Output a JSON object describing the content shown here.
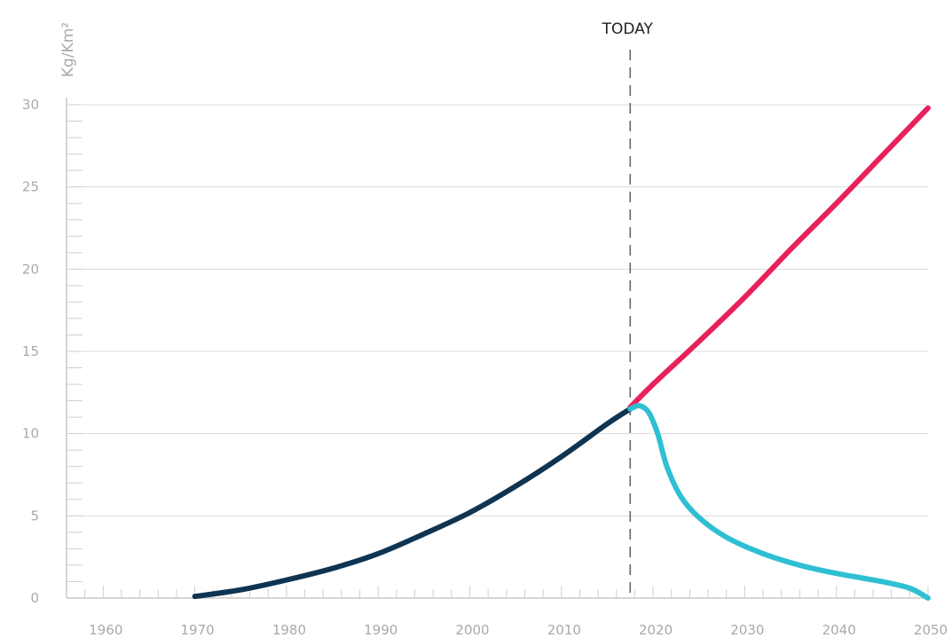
{
  "chart_data": {
    "type": "line",
    "title": "",
    "xlabel": "",
    "ylabel": "Kg/Km²",
    "xlim": [
      1956,
      2050
    ],
    "ylim": [
      0,
      30
    ],
    "x_ticks": [
      1960,
      1970,
      1980,
      1990,
      2000,
      2010,
      2020,
      2030,
      2040,
      2050
    ],
    "y_ticks": [
      0,
      5,
      10,
      15,
      20,
      25,
      30
    ],
    "grid": "horizontal",
    "legend": "none",
    "annotation": {
      "label": "TODAY",
      "x": 2017.5
    },
    "series": [
      {
        "color": "#0e3452",
        "x": [
          1970,
          1975,
          1980,
          1985,
          1990,
          1995,
          2000,
          2005,
          2010,
          2015,
          2017.5
        ],
        "y": [
          0.1,
          0.5,
          1.1,
          1.8,
          2.7,
          3.9,
          5.2,
          6.8,
          8.6,
          10.6,
          11.5
        ]
      },
      {
        "color": "#e8215a",
        "x": [
          2017.5,
          2020,
          2025,
          2030,
          2035,
          2040,
          2045,
          2050
        ],
        "y": [
          11.6,
          13.0,
          15.6,
          18.3,
          21.2,
          24.0,
          26.9,
          29.8
        ]
      },
      {
        "color": "#2fbfd3",
        "x": [
          2017.5,
          2018.5,
          2019.5,
          2020.5,
          2021.5,
          2023,
          2025,
          2028,
          2032,
          2036,
          2040,
          2045,
          2048,
          2050
        ],
        "y": [
          11.5,
          11.7,
          11.3,
          10.0,
          8.0,
          6.2,
          4.9,
          3.7,
          2.7,
          2.0,
          1.5,
          1.0,
          0.6,
          0.0
        ]
      }
    ]
  }
}
